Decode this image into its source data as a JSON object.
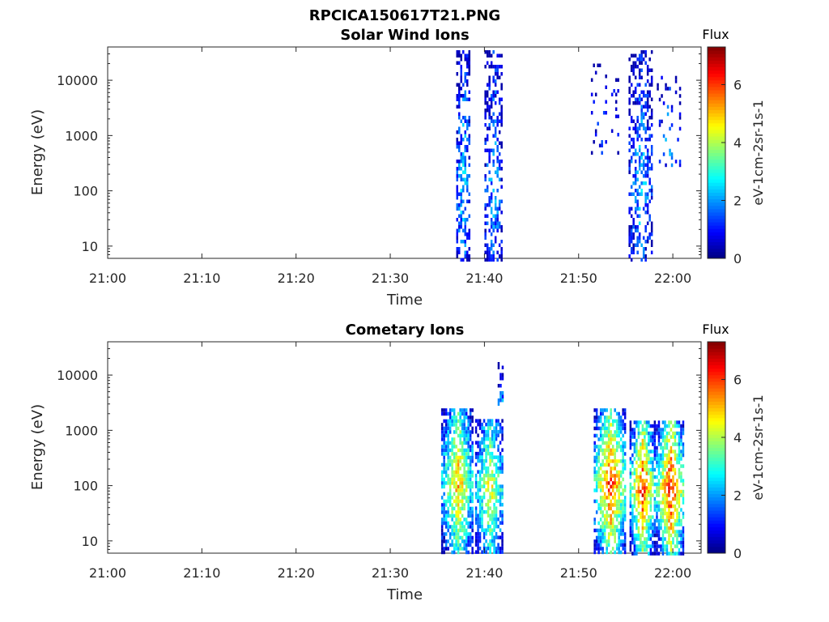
{
  "figure_title": "RPCICA150617T21.PNG",
  "chart_data": [
    {
      "type": "heatmap",
      "title": "Solar Wind Ions",
      "xlabel": "Time",
      "ylabel": "Energy (eV)",
      "xticks": [
        "21:00",
        "21:10",
        "21:20",
        "21:30",
        "21:40",
        "21:50",
        "22:00"
      ],
      "xlim_minutes": [
        0,
        63
      ],
      "yscale": "log",
      "ylim": [
        6,
        40000
      ],
      "yticks": [
        10,
        100,
        1000,
        10000
      ],
      "colorbar": {
        "title": "Flux",
        "label": "eV-1cm-2sr-1s-1",
        "range": [
          0,
          7.3
        ],
        "ticks": [
          0,
          2,
          4,
          6
        ],
        "colormap": "jet"
      },
      "clusters": [
        {
          "t_start": 37.0,
          "t_end": 38.4,
          "e_min": 6,
          "e_max": 35000,
          "flux_peak": 2.6,
          "fill": 0.55
        },
        {
          "t_start": 40.0,
          "t_end": 41.8,
          "e_min": 6,
          "e_max": 35000,
          "flux_peak": 2.2,
          "fill": 0.45
        },
        {
          "t_start": 51.3,
          "t_end": 54.2,
          "e_min": 500,
          "e_max": 20000,
          "flux_peak": 1.4,
          "fill": 0.12
        },
        {
          "t_start": 55.3,
          "t_end": 57.7,
          "e_min": 6,
          "e_max": 35000,
          "flux_peak": 2.3,
          "fill": 0.45
        },
        {
          "t_start": 58.3,
          "t_end": 60.8,
          "e_min": 300,
          "e_max": 12000,
          "flux_peak": 2.2,
          "fill": 0.12
        }
      ]
    },
    {
      "type": "heatmap",
      "title": "Cometary Ions",
      "xlabel": "Time",
      "ylabel": "Energy (eV)",
      "xticks": [
        "21:00",
        "21:10",
        "21:20",
        "21:30",
        "21:40",
        "21:50",
        "22:00"
      ],
      "xlim_minutes": [
        0,
        63
      ],
      "yscale": "log",
      "ylim": [
        6,
        40000
      ],
      "yticks": [
        10,
        100,
        1000,
        10000
      ],
      "colorbar": {
        "title": "Flux",
        "label": "eV-1cm-2sr-1s-1",
        "range": [
          0,
          7.3
        ],
        "ticks": [
          0,
          2,
          4,
          6
        ],
        "colormap": "jet"
      },
      "clusters": [
        {
          "t_start": 35.4,
          "t_end": 38.8,
          "e_min": 6,
          "e_max": 2500,
          "flux_peak": 5.2,
          "fill": 0.75
        },
        {
          "t_start": 39.0,
          "t_end": 42.0,
          "e_min": 6,
          "e_max": 1600,
          "flux_peak": 4.6,
          "fill": 0.65
        },
        {
          "t_start": 41.4,
          "t_end": 42.0,
          "e_min": 3000,
          "e_max": 20000,
          "flux_peak": 2.4,
          "fill": 0.35
        },
        {
          "t_start": 51.6,
          "t_end": 55.0,
          "e_min": 6,
          "e_max": 2500,
          "flux_peak": 6.3,
          "fill": 0.7
        },
        {
          "t_start": 55.4,
          "t_end": 58.0,
          "e_min": 6,
          "e_max": 1500,
          "flux_peak": 6.3,
          "fill": 0.7
        },
        {
          "t_start": 58.2,
          "t_end": 61.2,
          "e_min": 6,
          "e_max": 1500,
          "flux_peak": 6.6,
          "fill": 0.7
        }
      ]
    }
  ]
}
